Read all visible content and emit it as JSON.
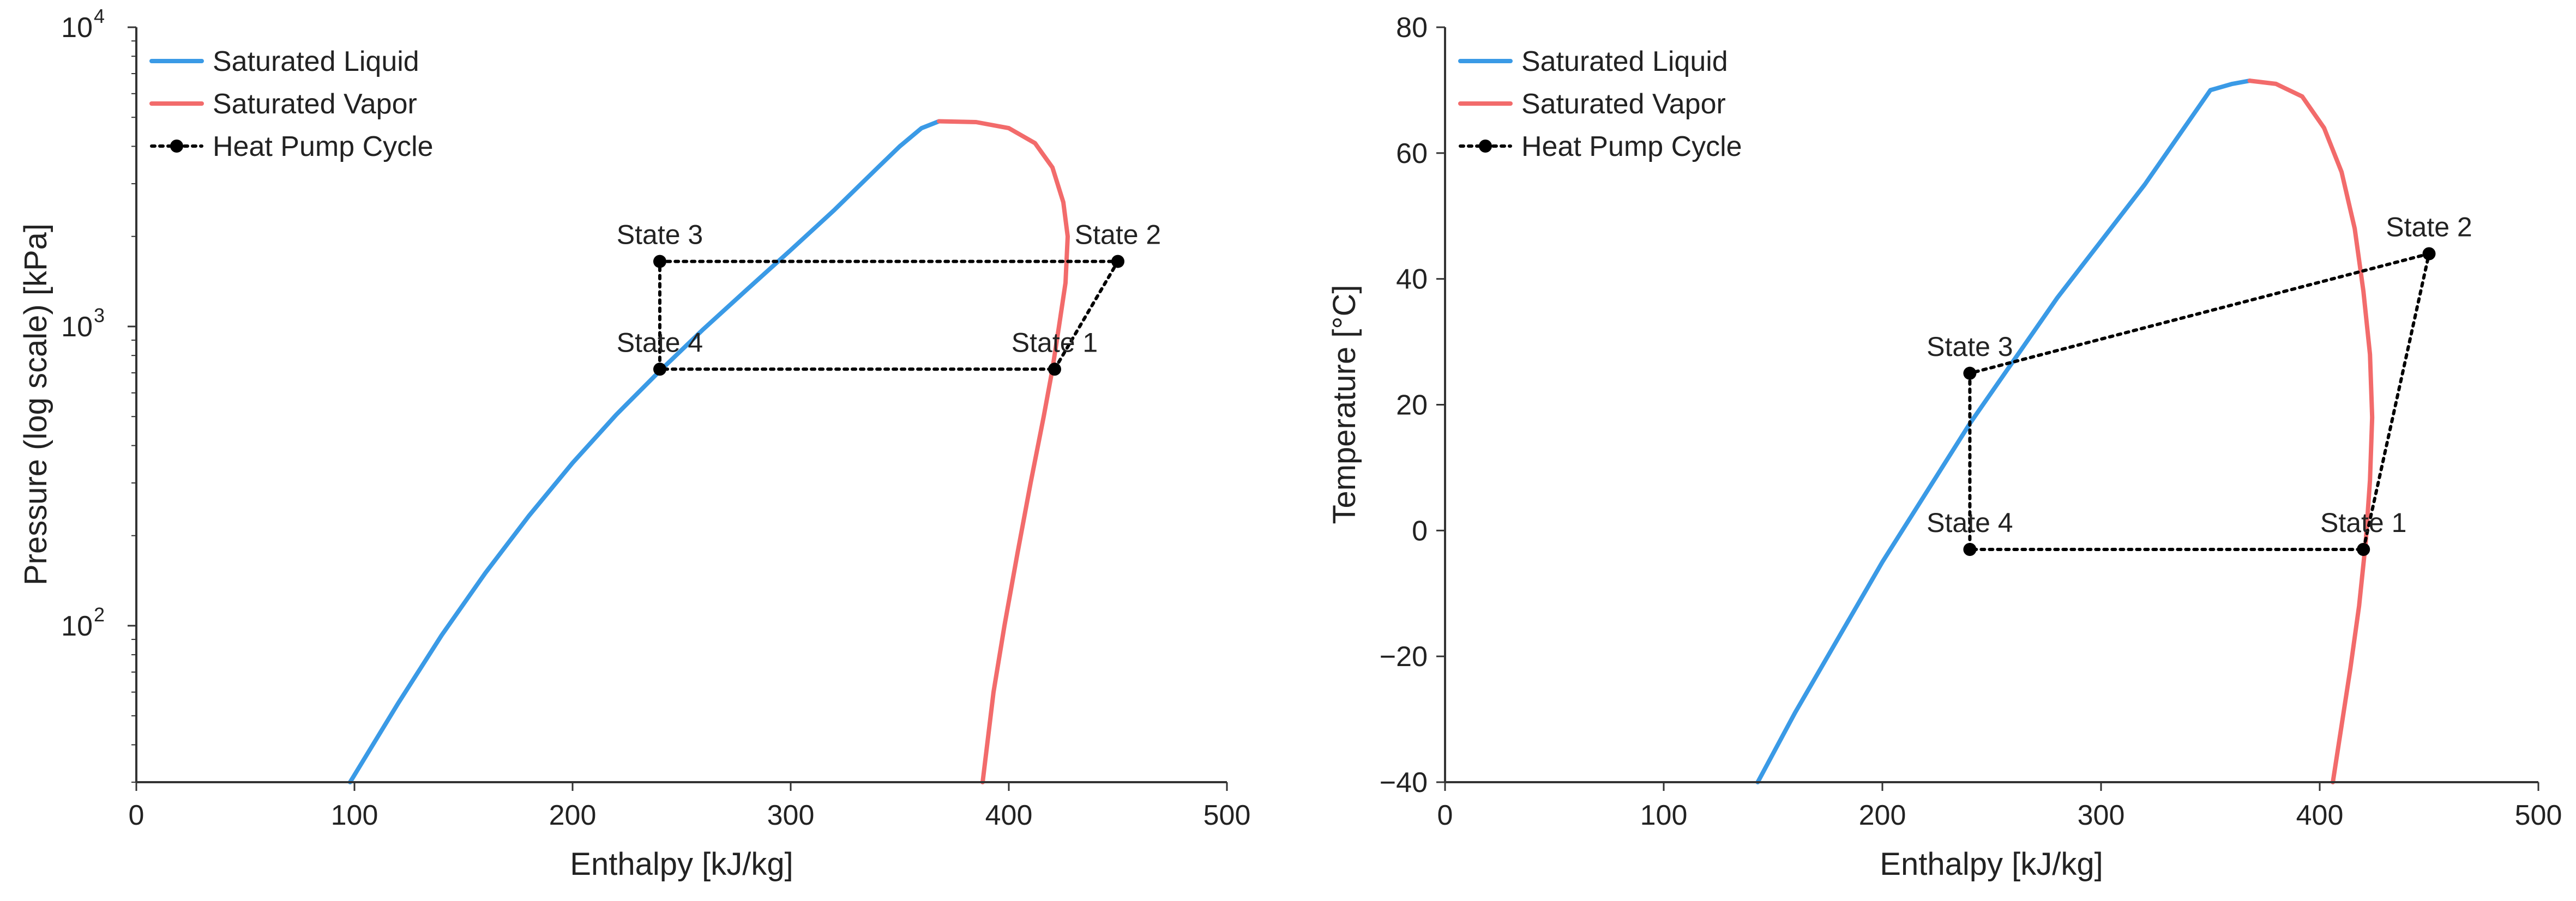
{
  "colors": {
    "saturated_liquid": "#3a9ae6",
    "saturated_vapor": "#f26b6b",
    "cycle": "#000000",
    "axis": "#333333"
  },
  "chart_data": [
    {
      "type": "line",
      "title": "",
      "xlabel": "Enthalpy [kJ/kg]",
      "ylabel": "Pressure (log scale) [kPa]",
      "yscale": "log",
      "xlim": [
        0,
        500
      ],
      "ylim": [
        30,
        10000
      ],
      "xticks": [
        0,
        100,
        200,
        300,
        400,
        500
      ],
      "xtick_labels": [
        "0",
        "100",
        "200",
        "300",
        "400",
        "500"
      ],
      "yticks": [
        100,
        1000,
        10000
      ],
      "ytick_base": "10",
      "ytick_exponents": [
        "2",
        "3",
        "4"
      ],
      "grid": false,
      "legend_position": "top-left",
      "legend": [
        {
          "label": "Saturated Liquid",
          "key": "liquid"
        },
        {
          "label": "Saturated Vapor",
          "key": "vapor"
        },
        {
          "label": "Heat Pump Cycle",
          "key": "cycle"
        }
      ],
      "series": [
        {
          "name": "Saturated Liquid",
          "key": "liquid",
          "x": [
            98,
            120,
            140,
            160,
            180,
            200,
            220,
            240,
            260,
            280,
            300,
            320,
            340,
            350,
            360,
            368
          ],
          "y": [
            30,
            55,
            93,
            150,
            233,
            350,
            507,
            710,
            980,
            1330,
            1800,
            2450,
            3400,
            4000,
            4600,
            4850
          ]
        },
        {
          "name": "Saturated Vapor",
          "key": "vapor",
          "x": [
            368,
            385,
            400,
            412,
            420,
            425,
            427,
            426,
            423,
            420,
            416,
            410,
            404,
            398,
            393,
            388
          ],
          "y": [
            4850,
            4820,
            4600,
            4100,
            3400,
            2600,
            2000,
            1400,
            1000,
            720,
            500,
            300,
            175,
            100,
            60,
            30
          ]
        },
        {
          "name": "Heat Pump Cycle",
          "key": "cycle",
          "x": [
            421,
            450,
            240,
            240,
            421
          ],
          "y": [
            720,
            1650,
            1650,
            720,
            720
          ]
        }
      ],
      "annotations": [
        {
          "text": "State 1",
          "x": 421,
          "y": 720
        },
        {
          "text": "State 2",
          "x": 450,
          "y": 1650
        },
        {
          "text": "State 3",
          "x": 240,
          "y": 1650
        },
        {
          "text": "State 4",
          "x": 240,
          "y": 720
        }
      ]
    },
    {
      "type": "line",
      "title": "",
      "xlabel": "Enthalpy [kJ/kg]",
      "ylabel": "Temperature [°C]",
      "yscale": "linear",
      "xlim": [
        0,
        500
      ],
      "ylim": [
        -40,
        80
      ],
      "xticks": [
        0,
        100,
        200,
        300,
        400,
        500
      ],
      "xtick_labels": [
        "0",
        "100",
        "200",
        "300",
        "400",
        "500"
      ],
      "yticks": [
        -40,
        -20,
        0,
        20,
        40,
        60,
        80
      ],
      "ytick_labels": [
        "−40",
        "−20",
        "0",
        "20",
        "40",
        "60",
        "80"
      ],
      "grid": false,
      "legend_position": "top-left",
      "legend": [
        {
          "label": "Saturated Liquid",
          "key": "liquid"
        },
        {
          "label": "Saturated Vapor",
          "key": "vapor"
        },
        {
          "label": "Heat Pump Cycle",
          "key": "cycle"
        }
      ],
      "series": [
        {
          "name": "Saturated Liquid",
          "key": "liquid",
          "x": [
            143,
            160,
            180,
            200,
            220,
            240,
            260,
            280,
            300,
            320,
            340,
            350,
            360,
            368
          ],
          "y": [
            -40,
            -29,
            -17,
            -5,
            6,
            17,
            27,
            37,
            46,
            55,
            65,
            70,
            71,
            71.5
          ]
        },
        {
          "name": "Saturated Vapor",
          "key": "vapor",
          "x": [
            368,
            380,
            392,
            402,
            410,
            416,
            420,
            423,
            424,
            423,
            421,
            418,
            414,
            410,
            406
          ],
          "y": [
            71.5,
            71,
            69,
            64,
            57,
            48,
            38,
            28,
            18,
            8,
            -2,
            -12,
            -22,
            -31,
            -40
          ]
        },
        {
          "name": "Heat Pump Cycle",
          "key": "cycle",
          "x": [
            420,
            450,
            240,
            240,
            420
          ],
          "y": [
            -3,
            44,
            25,
            -3,
            -3
          ]
        }
      ],
      "annotations": [
        {
          "text": "State 1",
          "x": 420,
          "y": -3
        },
        {
          "text": "State 2",
          "x": 450,
          "y": 44
        },
        {
          "text": "State 3",
          "x": 240,
          "y": 25
        },
        {
          "text": "State 4",
          "x": 240,
          "y": -3
        }
      ]
    }
  ]
}
